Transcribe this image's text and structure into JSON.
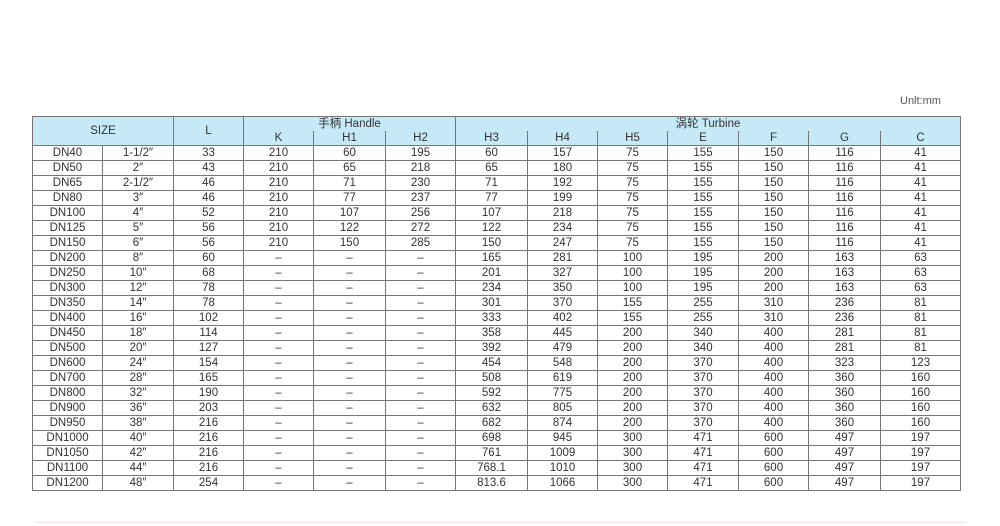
{
  "unit": "Unlt:mm",
  "headers": {
    "size": "SIZE",
    "l": "L",
    "handle": "手柄 Handle",
    "turbine": "涡轮 Turbine",
    "cols": [
      "K",
      "H1",
      "H2",
      "H3",
      "H4",
      "H5",
      "E",
      "F",
      "G",
      "C"
    ]
  },
  "rows": [
    [
      "DN40",
      "1-1/2″",
      "33",
      "210",
      "60",
      "195",
      "60",
      "157",
      "75",
      "155",
      "150",
      "116",
      "41"
    ],
    [
      "DN50",
      "2″",
      "43",
      "210",
      "65",
      "218",
      "65",
      "180",
      "75",
      "155",
      "150",
      "116",
      "41"
    ],
    [
      "DN65",
      "2-1/2″",
      "46",
      "210",
      "71",
      "230",
      "71",
      "192",
      "75",
      "155",
      "150",
      "116",
      "41"
    ],
    [
      "DN80",
      "3″",
      "46",
      "210",
      "77",
      "237",
      "77",
      "199",
      "75",
      "155",
      "150",
      "116",
      "41"
    ],
    [
      "DN100",
      "4″",
      "52",
      "210",
      "107",
      "256",
      "107",
      "218",
      "75",
      "155",
      "150",
      "116",
      "41"
    ],
    [
      "DN125",
      "5″",
      "56",
      "210",
      "122",
      "272",
      "122",
      "234",
      "75",
      "155",
      "150",
      "116",
      "41"
    ],
    [
      "DN150",
      "6″",
      "56",
      "210",
      "150",
      "285",
      "150",
      "247",
      "75",
      "155",
      "150",
      "116",
      "41"
    ],
    [
      "DN200",
      "8″",
      "60",
      "–",
      "–",
      "–",
      "165",
      "281",
      "100",
      "195",
      "200",
      "163",
      "63"
    ],
    [
      "DN250",
      "10″",
      "68",
      "–",
      "–",
      "–",
      "201",
      "327",
      "100",
      "195",
      "200",
      "163",
      "63"
    ],
    [
      "DN300",
      "12″",
      "78",
      "–",
      "–",
      "–",
      "234",
      "350",
      "100",
      "195",
      "200",
      "163",
      "63"
    ],
    [
      "DN350",
      "14″",
      "78",
      "–",
      "–",
      "–",
      "301",
      "370",
      "155",
      "255",
      "310",
      "236",
      "81"
    ],
    [
      "DN400",
      "16″",
      "102",
      "–",
      "–",
      "–",
      "333",
      "402",
      "155",
      "255",
      "310",
      "236",
      "81"
    ],
    [
      "DN450",
      "18″",
      "114",
      "–",
      "–",
      "–",
      "358",
      "445",
      "200",
      "340",
      "400",
      "281",
      "81"
    ],
    [
      "DN500",
      "20″",
      "127",
      "–",
      "–",
      "–",
      "392",
      "479",
      "200",
      "340",
      "400",
      "281",
      "81"
    ],
    [
      "DN600",
      "24″",
      "154",
      "–",
      "–",
      "–",
      "454",
      "548",
      "200",
      "370",
      "400",
      "323",
      "123"
    ],
    [
      "DN700",
      "28″",
      "165",
      "–",
      "–",
      "–",
      "508",
      "619",
      "200",
      "370",
      "400",
      "360",
      "160"
    ],
    [
      "DN800",
      "32″",
      "190",
      "–",
      "–",
      "–",
      "592",
      "775",
      "200",
      "370",
      "400",
      "360",
      "160"
    ],
    [
      "DN900",
      "36″",
      "203",
      "–",
      "–",
      "–",
      "632",
      "805",
      "200",
      "370",
      "400",
      "360",
      "160"
    ],
    [
      "DN950",
      "38″",
      "216",
      "–",
      "–",
      "–",
      "682",
      "874",
      "200",
      "370",
      "400",
      "360",
      "160"
    ],
    [
      "DN1000",
      "40″",
      "216",
      "–",
      "–",
      "–",
      "698",
      "945",
      "300",
      "471",
      "600",
      "497",
      "197"
    ],
    [
      "DN1050",
      "42″",
      "216",
      "–",
      "–",
      "–",
      "761",
      "1009",
      "300",
      "471",
      "600",
      "497",
      "197"
    ],
    [
      "DN1100",
      "44″",
      "216",
      "–",
      "–",
      "–",
      "768.1",
      "1010",
      "300",
      "471",
      "600",
      "497",
      "197"
    ],
    [
      "DN1200",
      "48″",
      "254",
      "–",
      "–",
      "–",
      "813.6",
      "1066",
      "300",
      "471",
      "600",
      "497",
      "197"
    ]
  ]
}
